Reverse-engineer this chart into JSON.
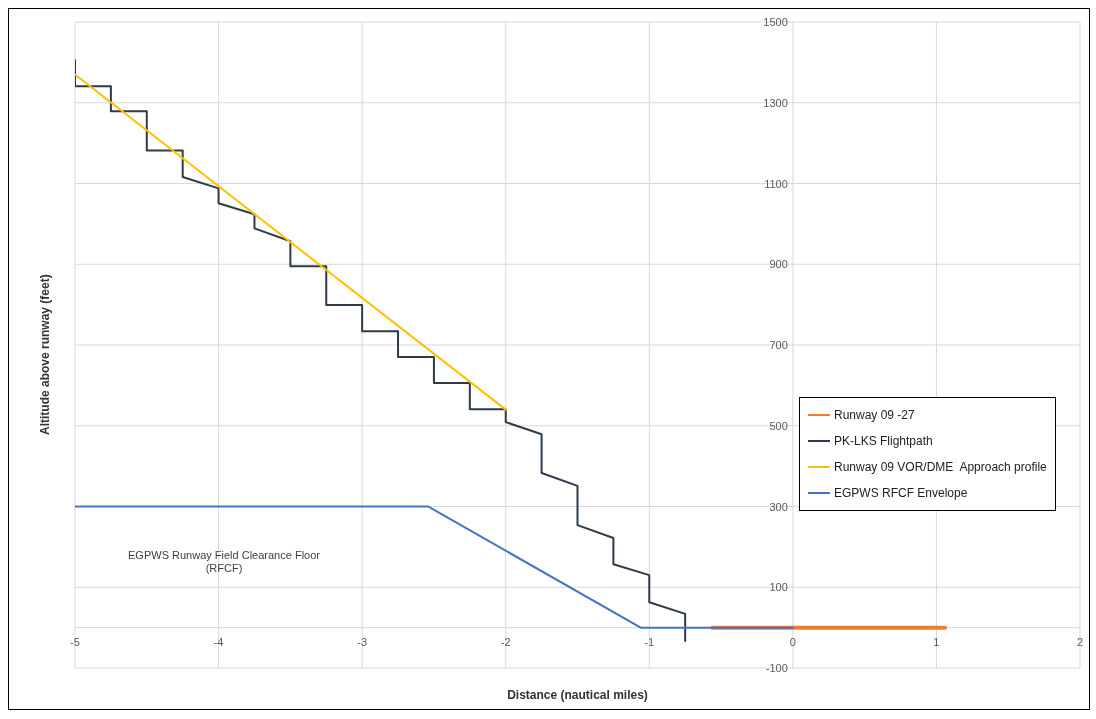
{
  "chart_data": {
    "type": "line",
    "xlabel": "Distance (nautical miles)",
    "ylabel": "Altitude above runway (feet)",
    "xlim": [
      -5,
      2
    ],
    "xticks": [
      -5,
      -4,
      -3,
      -2,
      -1,
      0,
      1,
      2
    ],
    "ylim": [
      -100,
      1500
    ],
    "yticks": [
      -100,
      {
        "value": 0,
        "label": null
      },
      100,
      300,
      500,
      700,
      900,
      1100,
      1300,
      1500
    ],
    "grid": true,
    "legend": "right",
    "annotations": [
      "EGPWS Runway Field Clearance Floor (RFCF)"
    ],
    "series": [
      {
        "name": "Runway 09 -27",
        "color": "#ed7d31",
        "x": [
          -0.56,
          1.06
        ],
        "values": [
          0,
          0
        ]
      },
      {
        "name": "PK-LKS Flightpath",
        "color": "#2f3a4a",
        "x": [
          -5,
          -5,
          -4.75,
          -4.75,
          -4.5,
          -4.5,
          -4.25,
          -4.25,
          -4,
          -4,
          -3.75,
          -3.75,
          -3.5,
          -3.5,
          -3.25,
          -3.25,
          -3,
          -3,
          -2.75,
          -2.75,
          -2.5,
          -2.5,
          -2.25,
          -2.25,
          -2,
          -2,
          -1.75,
          -1.75,
          -1.5,
          -1.5,
          -1.25,
          -1.25,
          -1,
          -1,
          -0.75,
          -0.75
        ],
        "values": [
          1405,
          1341,
          1341,
          1279,
          1279,
          1182,
          1182,
          1116,
          1088,
          1051,
          1024,
          989,
          957,
          895,
          895,
          799,
          799,
          734,
          734,
          670,
          670,
          606,
          606,
          541,
          541,
          509,
          479,
          383,
          351,
          254,
          222,
          157,
          130,
          63,
          34,
          -33
        ]
      },
      {
        "name": "Runway 09 VOR/DME  Approach profile",
        "color": "#ffc000",
        "x": [
          -5,
          -2
        ],
        "values": [
          1370,
          540
        ]
      },
      {
        "name": "EGPWS RFCF Envelope",
        "color": "#4472c4",
        "x": [
          -5,
          -2.54,
          -1.06,
          0
        ],
        "values": [
          300,
          300,
          0,
          0
        ]
      }
    ]
  }
}
